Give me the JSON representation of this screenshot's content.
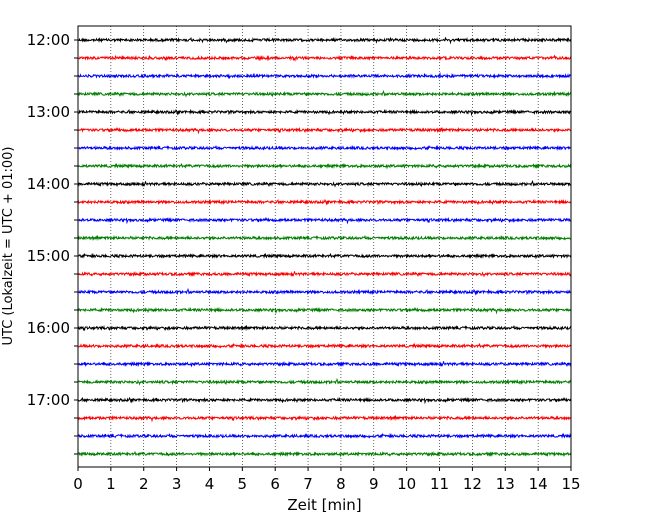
{
  "chart_data": {
    "type": "line",
    "title": "",
    "xlabel": "Zeit  [min]",
    "ylabel": "UTC (Lokalzeit = UTC + 01:00)",
    "xlim": [
      0,
      15
    ],
    "x_ticks": [
      "0",
      "1",
      "2",
      "3",
      "4",
      "5",
      "6",
      "7",
      "8",
      "9",
      "10",
      "11",
      "12",
      "13",
      "14",
      "15"
    ],
    "y_tick_labels": [
      "12:00",
      "13:00",
      "14:00",
      "15:00",
      "16:00",
      "17:00"
    ],
    "trace_interval_min": 15,
    "trace_start_times": [
      "12:00",
      "12:15",
      "12:30",
      "12:45",
      "13:00",
      "13:15",
      "13:30",
      "13:45",
      "14:00",
      "14:15",
      "14:30",
      "14:45",
      "15:00",
      "15:15",
      "15:30",
      "15:45",
      "16:00",
      "16:15",
      "16:30",
      "16:45",
      "17:00",
      "17:15",
      "17:30",
      "17:45"
    ],
    "trace_colors": [
      "#000000",
      "#ff0000",
      "#0000ff",
      "#008000"
    ],
    "grid": "vertical dotted at each minute",
    "legend": "none"
  }
}
